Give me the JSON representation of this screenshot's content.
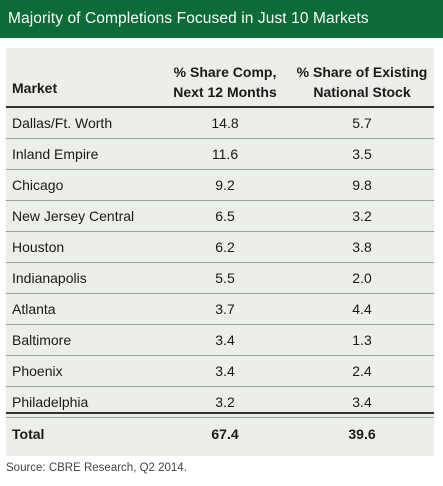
{
  "title": "Majority of Completions Focused in Just 10 Markets",
  "headers": {
    "market": "Market",
    "share_line1": "% Share Comp,",
    "share_line2": "Next 12 Months",
    "stock_line1": "% Share of Existing",
    "stock_line2": "National Stock"
  },
  "total": {
    "label": "Total",
    "share": "67.4",
    "stock": "39.6"
  },
  "source": "Source: CBRE Research, Q2 2014.",
  "colors": {
    "title_bar": "#0d6b38",
    "panel": "#eceee9"
  },
  "chart_data": {
    "type": "table",
    "title": "Majority of Completions Focused in Just 10 Markets",
    "columns": [
      "Market",
      "% Share Comp, Next 12 Months",
      "% Share of Existing National Stock"
    ],
    "rows": [
      [
        "Dallas/Ft. Worth",
        "14.8",
        "5.7"
      ],
      [
        "Inland Empire",
        "11.6",
        "3.5"
      ],
      [
        "Chicago",
        "9.2",
        "9.8"
      ],
      [
        "New Jersey Central",
        "6.5",
        "3.2"
      ],
      [
        "Houston",
        "6.2",
        "3.8"
      ],
      [
        "Indianapolis",
        "5.5",
        "2.0"
      ],
      [
        "Atlanta",
        "3.7",
        "4.4"
      ],
      [
        "Baltimore",
        "3.4",
        "1.3"
      ],
      [
        "Phoenix",
        "3.4",
        "2.4"
      ],
      [
        "Philadelphia",
        "3.2",
        "3.4"
      ]
    ],
    "total": [
      "Total",
      "67.4",
      "39.6"
    ]
  }
}
